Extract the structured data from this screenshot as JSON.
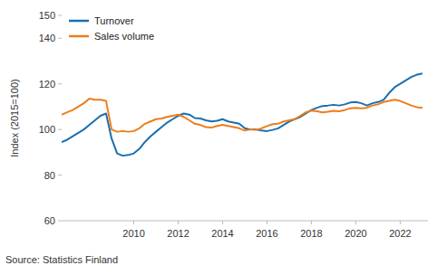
{
  "chart_data": {
    "type": "line",
    "y_label": "Index (2015=100)",
    "source": "Source: Statistics Finland",
    "x": [
      2006.75,
      2007.0,
      2007.25,
      2007.5,
      2007.75,
      2008.0,
      2008.25,
      2008.5,
      2008.75,
      2009.0,
      2009.25,
      2009.5,
      2009.75,
      2010.0,
      2010.25,
      2010.5,
      2010.75,
      2011.0,
      2011.25,
      2011.5,
      2011.75,
      2012.0,
      2012.25,
      2012.5,
      2012.75,
      2013.0,
      2013.25,
      2013.5,
      2013.75,
      2014.0,
      2014.25,
      2014.5,
      2014.75,
      2015.0,
      2015.25,
      2015.5,
      2015.75,
      2016.0,
      2016.25,
      2016.5,
      2016.75,
      2017.0,
      2017.25,
      2017.5,
      2017.75,
      2018.0,
      2018.25,
      2018.5,
      2018.75,
      2019.0,
      2019.25,
      2019.5,
      2019.75,
      2020.0,
      2020.25,
      2020.5,
      2020.75,
      2021.0,
      2021.25,
      2021.5,
      2021.75,
      2022.0,
      2022.25,
      2022.5,
      2022.75,
      2023.0
    ],
    "series": [
      {
        "name": "Turnover",
        "color": "#1b6fae",
        "values": [
          94.5,
          95.5,
          97,
          98.5,
          100,
          102,
          104,
          106,
          107,
          96,
          89.5,
          88.5,
          88.8,
          89.5,
          91.5,
          94.5,
          97,
          99,
          101,
          103,
          104.5,
          106,
          107,
          106.5,
          105,
          104.8,
          104,
          103.5,
          103.8,
          104.5,
          103.5,
          103,
          102.5,
          100.5,
          100,
          100,
          99.5,
          99.3,
          99.8,
          100.5,
          102,
          103.5,
          104.5,
          105.5,
          107,
          108.5,
          109.5,
          110.3,
          110.5,
          110.8,
          110.5,
          111,
          111.8,
          112,
          111.5,
          110.5,
          111.5,
          112,
          113,
          116,
          118.5,
          120,
          121.5,
          123,
          124,
          124.5
        ]
      },
      {
        "name": "Sales volume",
        "color": "#ee7d1b",
        "values": [
          106.5,
          107.5,
          108.5,
          110,
          111.5,
          113.5,
          113,
          113,
          112.5,
          100,
          99,
          99.3,
          99,
          99.3,
          100.5,
          102.5,
          103.5,
          104.5,
          104.8,
          105.5,
          106,
          106.5,
          105.5,
          104,
          102.5,
          102,
          101,
          100.8,
          101.5,
          102,
          101.5,
          101,
          100.5,
          99.5,
          100,
          99.8,
          100.5,
          101.5,
          102.3,
          102.5,
          103.5,
          104,
          104.5,
          106,
          107.5,
          108.3,
          108,
          107.5,
          107.8,
          108.2,
          108,
          108.5,
          109.3,
          109.5,
          109.3,
          109.5,
          110.5,
          111,
          112,
          112.5,
          113,
          112.5,
          111.5,
          110.5,
          109.8,
          109.5
        ]
      }
    ],
    "xlim": [
      2006.75,
      2023.25
    ],
    "xticks": [
      2010,
      2012,
      2014,
      2016,
      2018,
      2020,
      2022
    ],
    "ylim": [
      60,
      150
    ],
    "yticks": [
      60,
      80,
      100,
      120,
      140,
      150
    ],
    "grid": false,
    "legend": "upper left"
  }
}
